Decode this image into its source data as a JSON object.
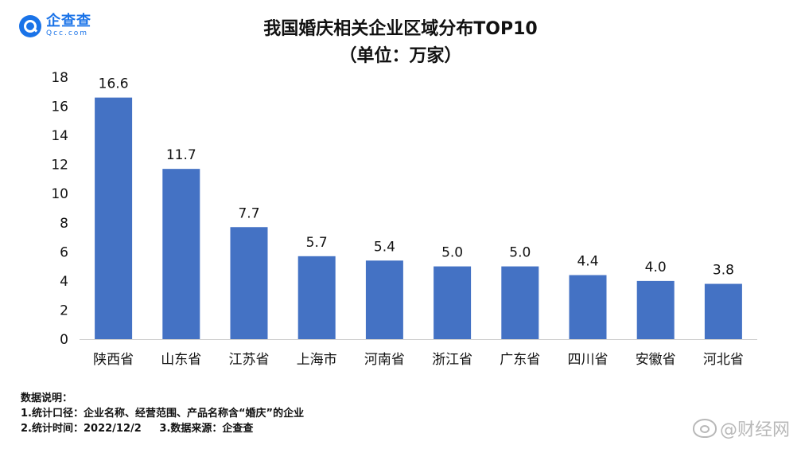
{
  "logo": {
    "name": "企查查",
    "sub": "Qcc.com"
  },
  "header": {
    "title_line1": "我国婚庆相关企业区域分布TOP10",
    "title_line2": "（单位：万家）"
  },
  "chart_data": {
    "type": "bar",
    "title": "我国婚庆相关企业区域分布TOP10",
    "subtitle": "（单位：万家）",
    "categories": [
      "陕西省",
      "山东省",
      "江苏省",
      "上海市",
      "河南省",
      "浙江省",
      "广东省",
      "四川省",
      "安徽省",
      "河北省"
    ],
    "values": [
      16.6,
      11.7,
      7.7,
      5.7,
      5.4,
      5.0,
      5.0,
      4.4,
      4.0,
      3.8
    ],
    "value_labels": [
      "16.6",
      "11.7",
      "7.7",
      "5.7",
      "5.4",
      "5.0",
      "5.0",
      "4.4",
      "4.0",
      "3.8"
    ],
    "yticks": [
      "0",
      "2",
      "4",
      "6",
      "8",
      "10",
      "12",
      "14",
      "16",
      "18"
    ],
    "ylim": [
      0,
      18
    ],
    "xlabel": "",
    "ylabel": "",
    "grid": false,
    "bar_color": "#4472c4"
  },
  "notes": {
    "heading": "数据说明：",
    "line1": "1.统计口径：企业名称、经营范围、产品名称含“婚庆”的企业",
    "line2": "2.统计时间：2022/12/2     3.数据来源：企查查"
  },
  "watermark": {
    "text": "@财经网"
  }
}
